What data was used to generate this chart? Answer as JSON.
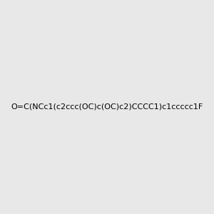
{
  "smiles": "O=C(NCc1(c2ccc(OC)c(OC)c2)CCCC1)c1ccccc1F",
  "image_size": 300,
  "background_color": "#e8e8e8",
  "title": ""
}
